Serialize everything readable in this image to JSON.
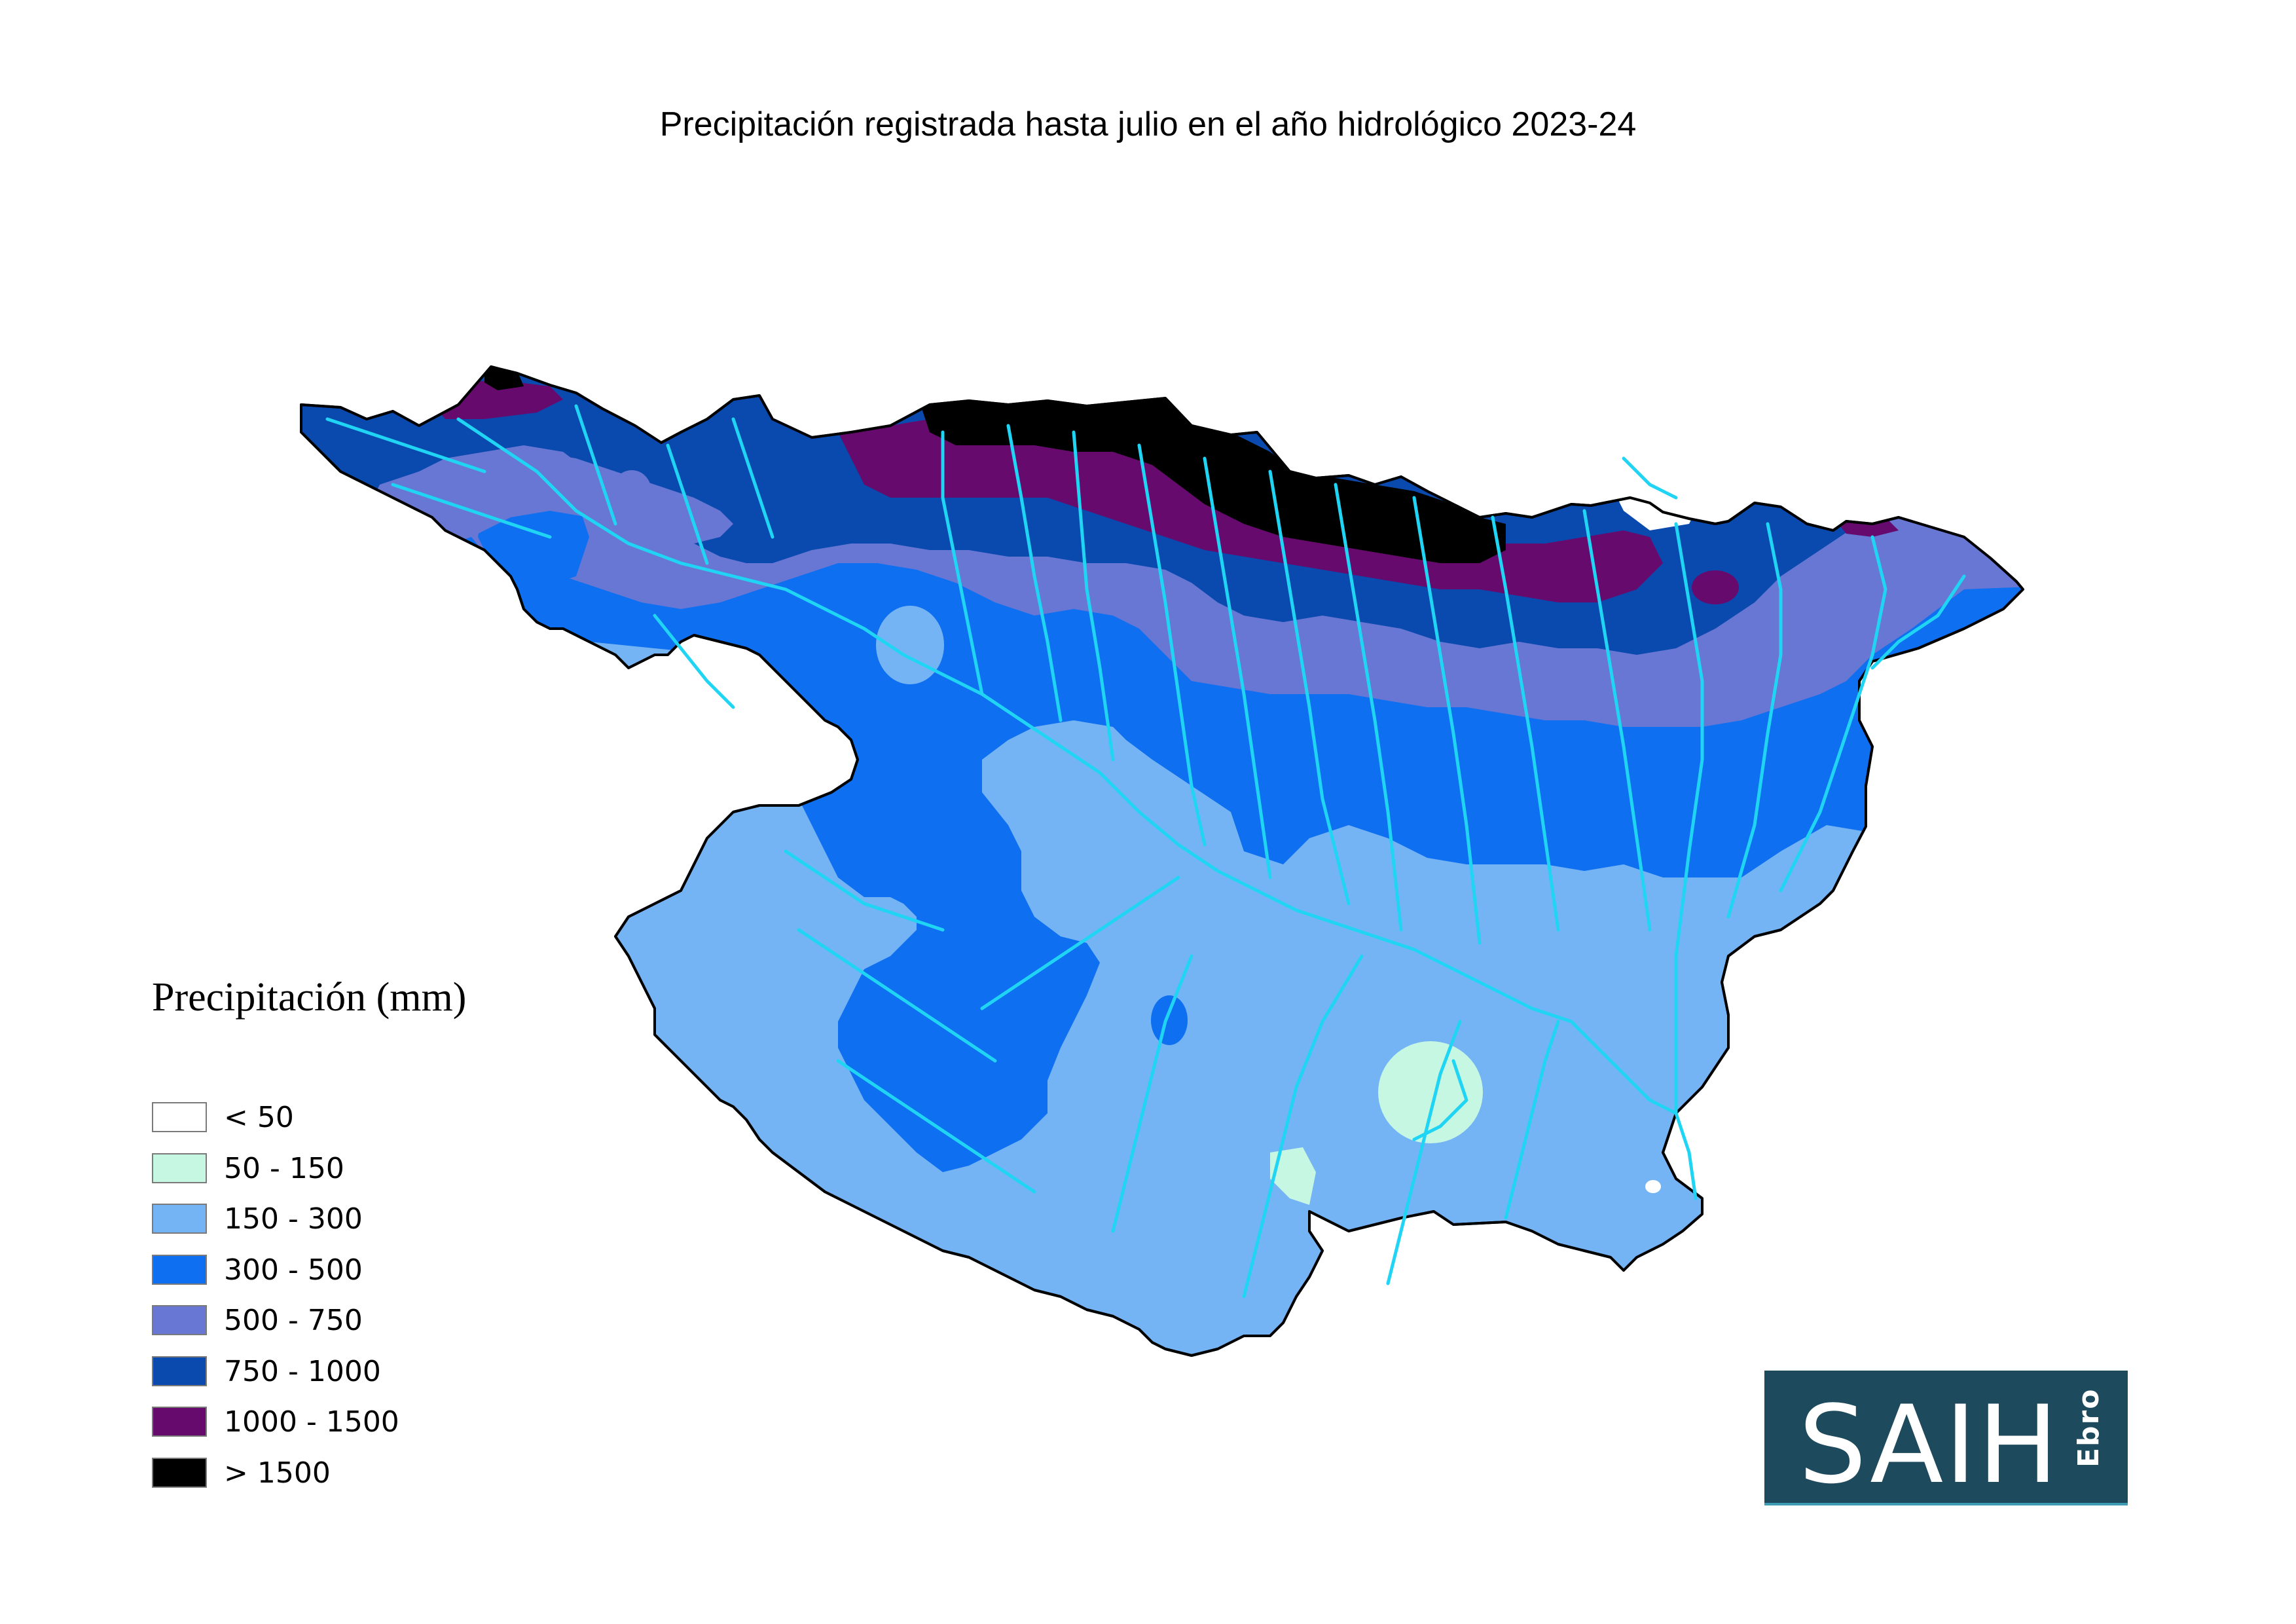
{
  "title": "Precipitación registrada hasta julio en el año hidrológico 2023-24",
  "legend": {
    "title": "Precipitación (mm)",
    "items": [
      {
        "label": "< 50",
        "color": "#ffffff"
      },
      {
        "label": "50 - 150",
        "color": "#c6f7e2"
      },
      {
        "label": "150 - 300",
        "color": "#74b4f4"
      },
      {
        "label": "300 - 500",
        "color": "#0e6ff0"
      },
      {
        "label": "500 - 750",
        "color": "#6777d3"
      },
      {
        "label": "750 - 1000",
        "color": "#0a4aae"
      },
      {
        "label": "1000 - 1500",
        "color": "#660a6e"
      },
      {
        "label": "> 1500",
        "color": "#000000"
      }
    ]
  },
  "rivers_color": "#20d4f4",
  "logo": {
    "text": "SAIH",
    "sub": "Ebro"
  }
}
